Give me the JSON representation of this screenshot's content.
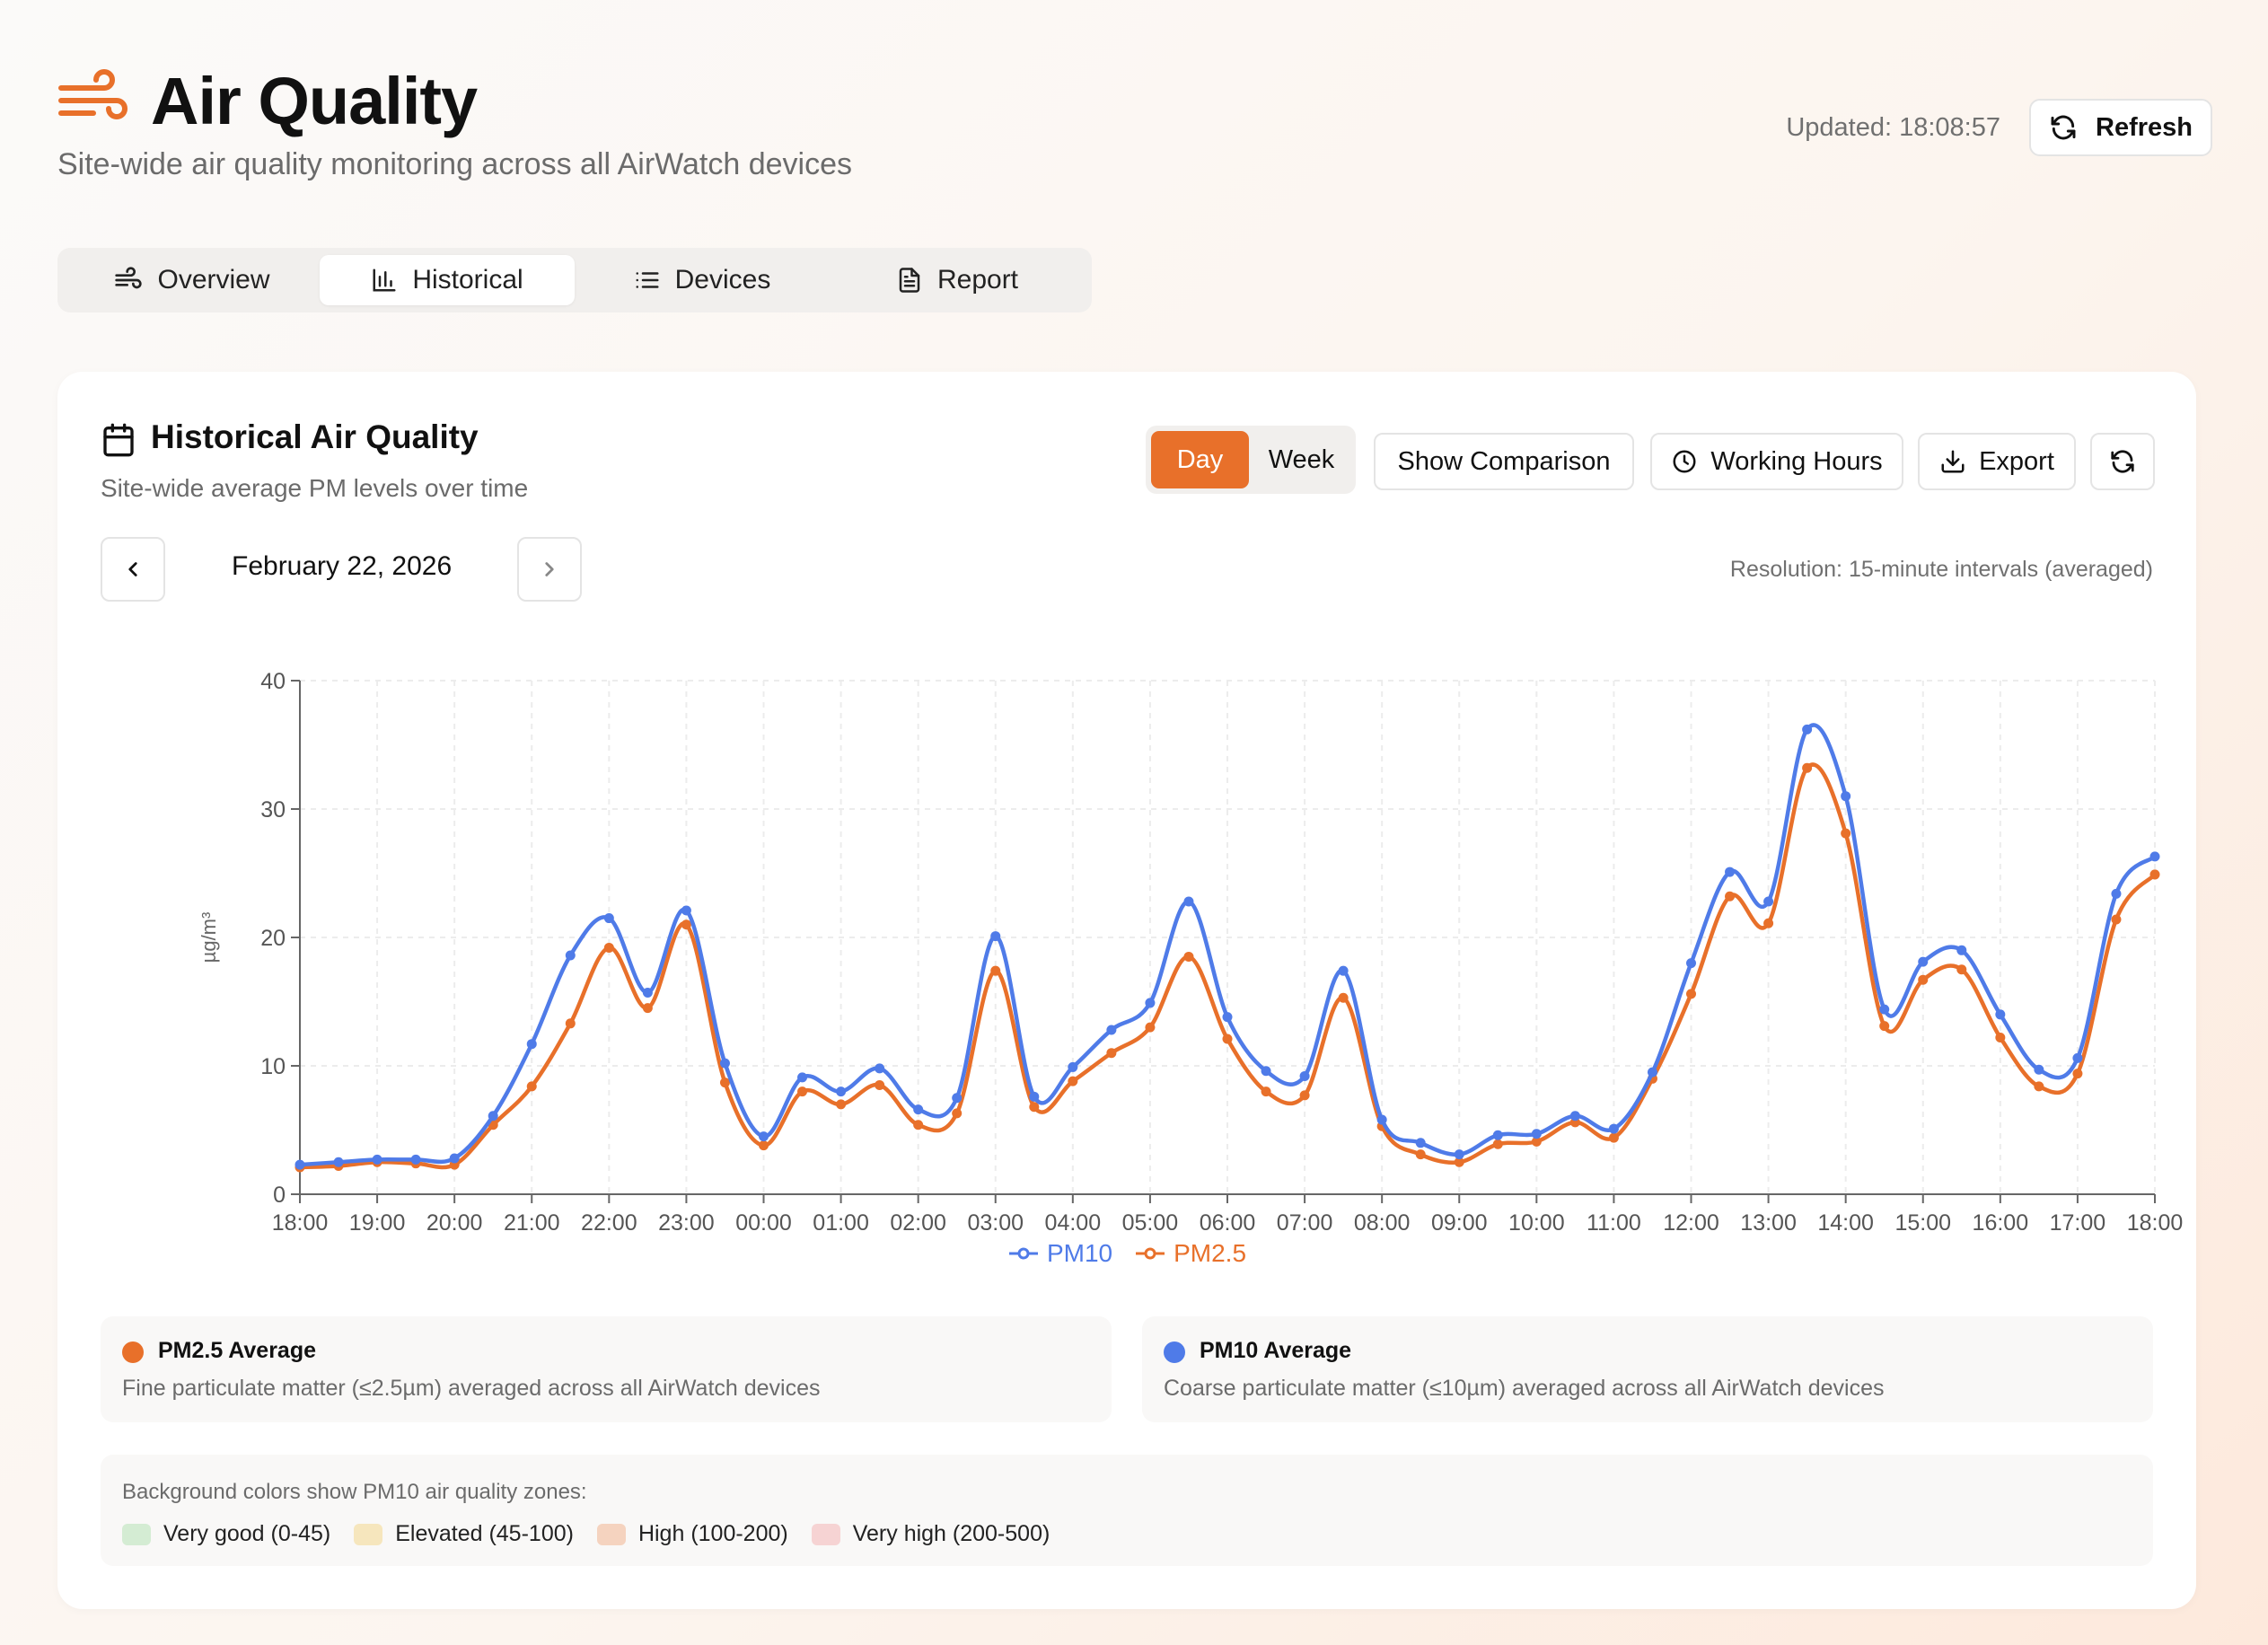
{
  "header": {
    "title": "Air Quality",
    "subtitle": "Site-wide air quality monitoring across all AirWatch devices",
    "updated": "Updated: 18:08:57",
    "refresh_label": "Refresh"
  },
  "tabs": [
    {
      "label": "Overview",
      "icon": "wind-icon",
      "active": false
    },
    {
      "label": "Historical",
      "icon": "bar-chart-icon",
      "active": true
    },
    {
      "label": "Devices",
      "icon": "list-icon",
      "active": false
    },
    {
      "label": "Report",
      "icon": "document-icon",
      "active": false
    }
  ],
  "card": {
    "title": "Historical Air Quality",
    "subtitle": "Site-wide average PM levels over time",
    "range": {
      "day": "Day",
      "week": "Week",
      "selected": "Day"
    },
    "show_comparison": "Show Comparison",
    "working_hours": "Working Hours",
    "export": "Export",
    "date": "February 22, 2026",
    "resolution": "Resolution: 15-minute intervals (averaged)"
  },
  "chart_data": {
    "type": "line",
    "ylabel": "µg/m³",
    "ylim": [
      0,
      40
    ],
    "yticks": [
      0,
      10,
      20,
      30,
      40
    ],
    "xticks": [
      "18:00",
      "19:00",
      "20:00",
      "21:00",
      "22:00",
      "23:00",
      "00:00",
      "01:00",
      "02:00",
      "03:00",
      "04:00",
      "05:00",
      "06:00",
      "07:00",
      "08:00",
      "09:00",
      "10:00",
      "11:00",
      "12:00",
      "13:00",
      "14:00",
      "15:00",
      "16:00",
      "17:00",
      "18:00"
    ],
    "grid": true,
    "legend": "bottom-center",
    "x": [
      0,
      0.5,
      1,
      1.5,
      2,
      2.5,
      3,
      3.5,
      4,
      4.5,
      5,
      5.5,
      6,
      6.5,
      7,
      7.5,
      8,
      8.5,
      9,
      9.5,
      10,
      10.5,
      11,
      11.5,
      12,
      12.5,
      13,
      13.5,
      14,
      14.5,
      15,
      15.5,
      16,
      16.5,
      17,
      17.5,
      18,
      18.5,
      19,
      19.5,
      20,
      20.5,
      21,
      21.5,
      22,
      22.5,
      23,
      23.5,
      24
    ],
    "series": [
      {
        "name": "PM10",
        "color": "#4f7be8",
        "values": [
          2.3,
          2.5,
          2.7,
          2.7,
          2.8,
          6.1,
          11.7,
          18.6,
          21.5,
          15.7,
          22.1,
          10.2,
          4.5,
          9.1,
          8.0,
          9.8,
          6.6,
          7.5,
          20.1,
          7.6,
          9.9,
          12.8,
          14.9,
          22.8,
          13.8,
          9.6,
          9.2,
          17.4,
          5.8,
          4.0,
          3.1,
          4.6,
          4.7,
          6.1,
          5.1,
          9.5,
          18.0,
          25.1,
          22.8,
          36.2,
          31.0,
          14.4,
          18.1,
          19.0,
          14.0,
          9.7,
          10.6,
          23.4,
          26.3
        ]
      },
      {
        "name": "PM2.5",
        "color": "#e8702a",
        "values": [
          2.1,
          2.2,
          2.5,
          2.4,
          2.3,
          5.4,
          8.4,
          13.3,
          19.2,
          14.5,
          21.0,
          8.7,
          3.8,
          8.0,
          7.0,
          8.5,
          5.4,
          6.3,
          17.4,
          6.8,
          8.8,
          11.0,
          13.0,
          18.5,
          12.1,
          8.0,
          7.7,
          15.3,
          5.3,
          3.1,
          2.5,
          3.9,
          4.1,
          5.6,
          4.4,
          9.0,
          15.6,
          23.2,
          21.1,
          33.2,
          28.1,
          13.1,
          16.7,
          17.5,
          12.2,
          8.4,
          9.4,
          21.4,
          24.9
        ]
      }
    ]
  },
  "info": {
    "pm25_title": "PM2.5 Average",
    "pm25_desc": "Fine particulate matter (≤2.5µm) averaged across all AirWatch devices",
    "pm10_title": "PM10 Average",
    "pm10_desc": "Coarse particulate matter (≤10µm) averaged across all AirWatch devices",
    "pm25_color": "#e8702a",
    "pm10_color": "#4f7be8"
  },
  "zones": {
    "title": "Background colors show PM10 air quality zones:",
    "items": [
      {
        "label": "Very good (0-45)",
        "color": "#d4ecd3"
      },
      {
        "label": "Elevated (45-100)",
        "color": "#f6e6bd"
      },
      {
        "label": "High (100-200)",
        "color": "#f5d3bf"
      },
      {
        "label": "Very high (200-500)",
        "color": "#f6d3d3"
      }
    ]
  }
}
